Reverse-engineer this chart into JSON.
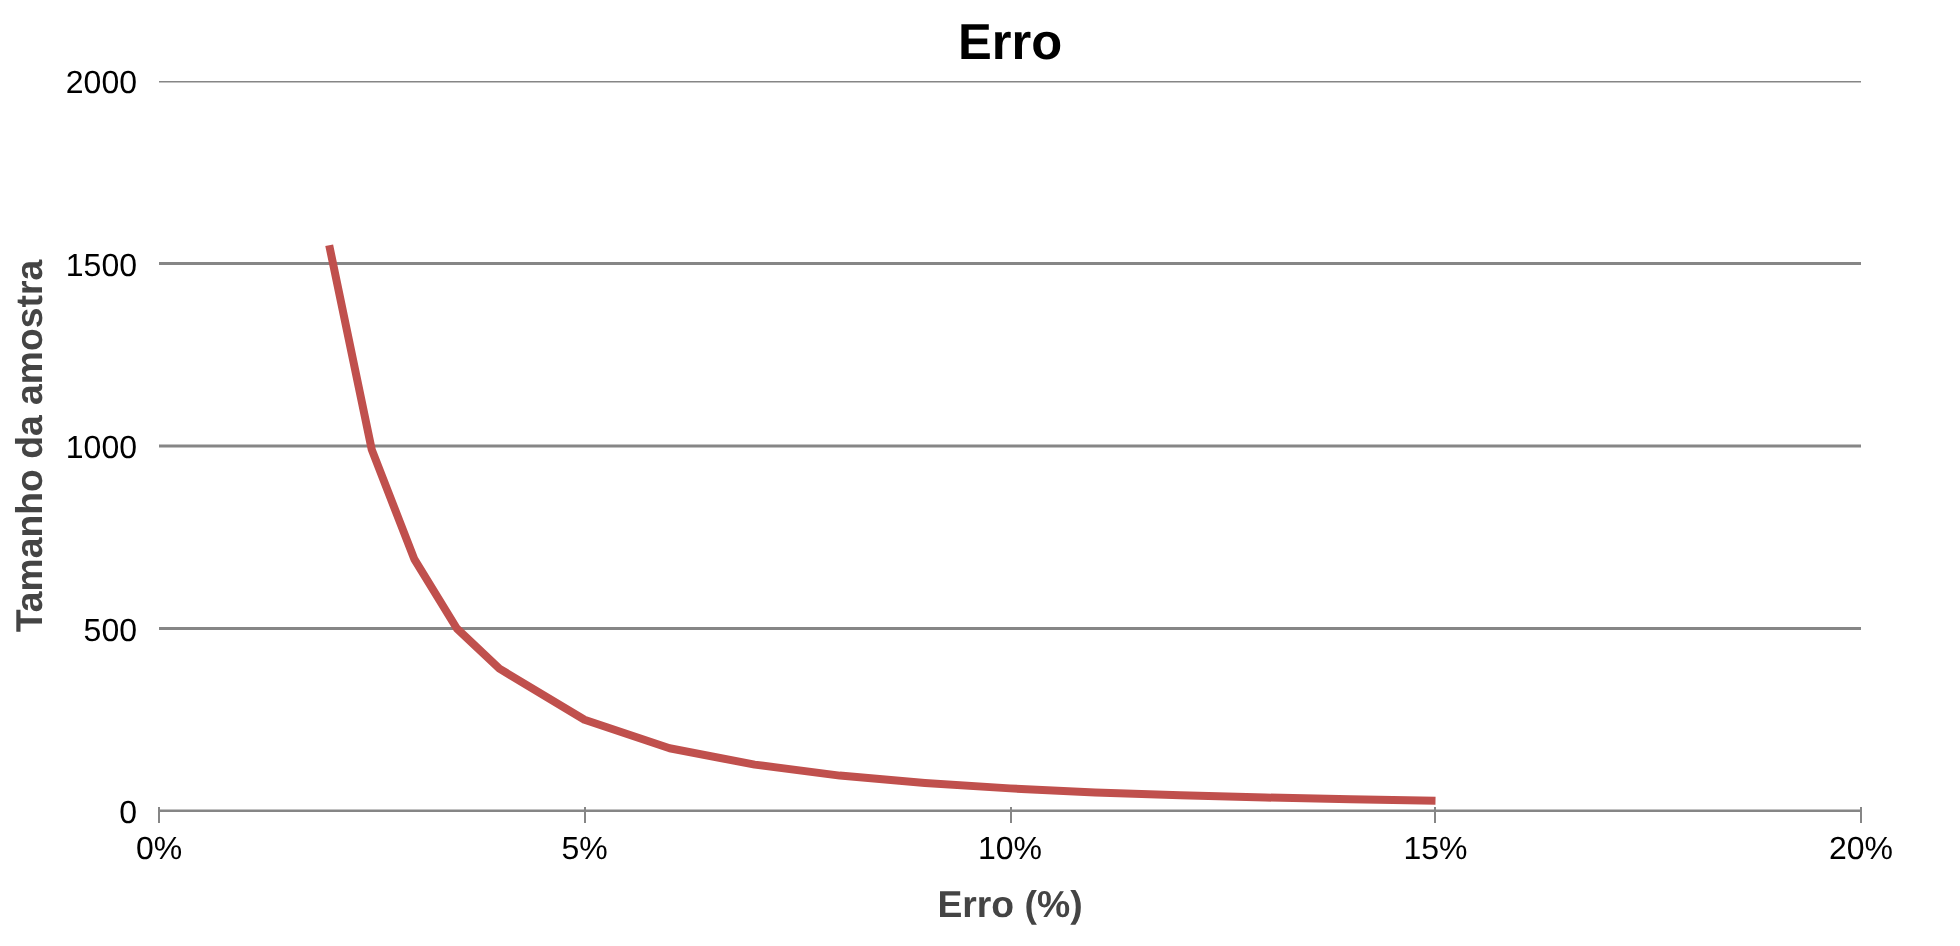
{
  "chart_data": {
    "type": "line",
    "title": "Erro",
    "xlabel": "Erro (%)",
    "ylabel": "Tamanho da amostra",
    "x": [
      0.02,
      0.025,
      0.03,
      0.035,
      0.04,
      0.05,
      0.06,
      0.07,
      0.08,
      0.09,
      0.1,
      0.11,
      0.12,
      0.13,
      0.14,
      0.15
    ],
    "series": [
      {
        "color": "#c0504d",
        "values": [
          1550,
          990,
          690,
          500,
          390,
          250,
          172,
          127,
          97,
          77,
          62,
          51,
          43,
          37,
          32,
          28
        ]
      }
    ],
    "xlim": [
      0,
      0.2
    ],
    "xticks": [
      {
        "value": 0,
        "label": "0%"
      },
      {
        "value": 0.05,
        "label": "5%"
      },
      {
        "value": 0.1,
        "label": "10%"
      },
      {
        "value": 0.15,
        "label": "15%"
      },
      {
        "value": 0.2,
        "label": "20%"
      }
    ],
    "ylim": [
      0,
      2000
    ],
    "yticks": [
      0,
      500,
      1000,
      1500,
      2000
    ],
    "grid": "y",
    "marker": "none",
    "line_style": "solid"
  }
}
